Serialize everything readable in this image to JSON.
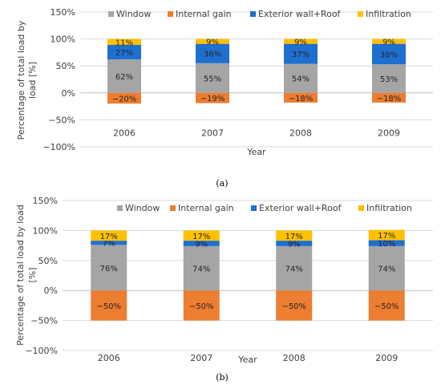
{
  "colors": {
    "Window": "#a5a5a5",
    "Internal gain": "#ed7d31",
    "Exterior wall+Roof": "#1f6fd1",
    "Infiltration": "#ffc000",
    "grid": "#d9d9d9",
    "zero_line": "#bfbfbf"
  },
  "chart_data": [
    {
      "type": "bar",
      "stacked": true,
      "caption": "(a)",
      "xlabel": "Year",
      "ylabel_lines": [
        "Percentage of total load by",
        "load [%]"
      ],
      "ylim": [
        -100,
        150
      ],
      "yticks": [
        -100,
        -50,
        0,
        50,
        100,
        150
      ],
      "ytick_labels": [
        "−100%",
        "−50%",
        "0%",
        "50%",
        "100%",
        "150%"
      ],
      "grid": true,
      "legend_position": "top",
      "categories": [
        "2006",
        "2007",
        "2008",
        "2009"
      ],
      "series": [
        {
          "name": "Window",
          "values": [
            62,
            55,
            54,
            53
          ],
          "labels": [
            "62%",
            "55%",
            "54%",
            "53%"
          ]
        },
        {
          "name": "Internal gain",
          "values": [
            -20,
            -19,
            -18,
            -18
          ],
          "labels": [
            "−20%",
            "−19%",
            "−18%",
            "−18%"
          ]
        },
        {
          "name": "Exterior wall+Roof",
          "values": [
            27,
            36,
            37,
            38
          ],
          "labels": [
            "27%",
            "36%",
            "37%",
            "38%"
          ]
        },
        {
          "name": "Infiltration",
          "values": [
            11,
            9,
            9,
            9
          ],
          "labels": [
            "11%",
            "9%",
            "9%",
            "9%"
          ]
        }
      ]
    },
    {
      "type": "bar",
      "stacked": true,
      "caption": "(b)",
      "xlabel": "Year",
      "ylabel_lines": [
        "Percentage of total load by load",
        "[%]"
      ],
      "ylim": [
        -100,
        150
      ],
      "yticks": [
        -100,
        -50,
        0,
        50,
        100,
        150
      ],
      "ytick_labels": [
        "−100%",
        "−50%",
        "0%",
        "50%",
        "100%",
        "150%"
      ],
      "grid": true,
      "legend_position": "top",
      "categories": [
        "2006",
        "2007",
        "2008",
        "2009"
      ],
      "series": [
        {
          "name": "Window",
          "values": [
            76,
            74,
            74,
            74
          ],
          "labels": [
            "76%",
            "74%",
            "74%",
            "74%"
          ]
        },
        {
          "name": "Internal gain",
          "values": [
            -50,
            -50,
            -50,
            -50
          ],
          "labels": [
            "−50%",
            "−50%",
            "−50%",
            "−50%"
          ]
        },
        {
          "name": "Exterior wall+Roof",
          "values": [
            7,
            9,
            9,
            10
          ],
          "labels": [
            "7%",
            "9%",
            "9%",
            "10%"
          ]
        },
        {
          "name": "Infiltration",
          "values": [
            17,
            17,
            17,
            17
          ],
          "labels": [
            "17%",
            "17%",
            "17%",
            "17%"
          ]
        }
      ]
    }
  ]
}
